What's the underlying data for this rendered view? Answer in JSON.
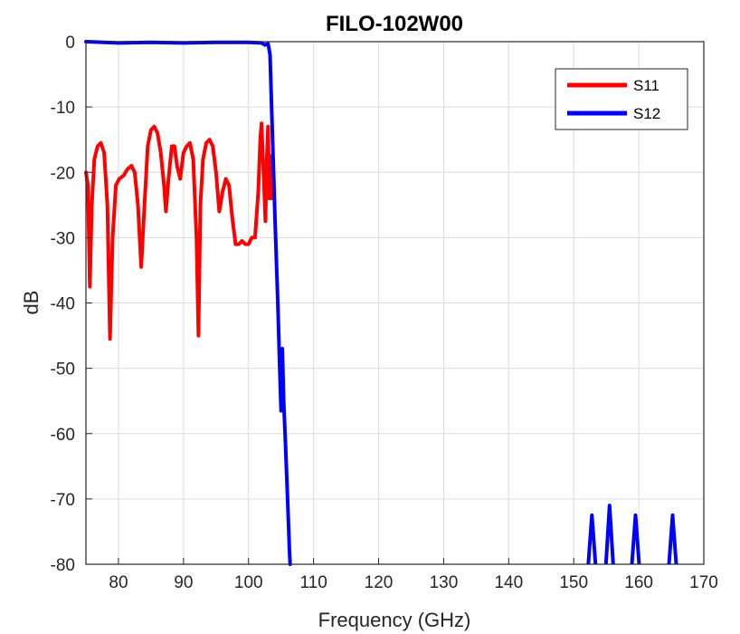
{
  "chart_data": {
    "type": "line",
    "title": "FILO-102W00",
    "xlabel": "Frequency (GHz)",
    "ylabel": "dB",
    "xlim": [
      75,
      170
    ],
    "ylim": [
      -80,
      0
    ],
    "xticks": [
      80,
      90,
      100,
      110,
      120,
      130,
      140,
      150,
      160,
      170
    ],
    "yticks": [
      0,
      -10,
      -20,
      -30,
      -40,
      -50,
      -60,
      -70,
      -80
    ],
    "grid": true,
    "legend_position": "top-right",
    "series": [
      {
        "name": "S11",
        "color": "#ff0000",
        "points": [
          [
            75.0,
            -20
          ],
          [
            75.3,
            -22
          ],
          [
            75.6,
            -37.5
          ],
          [
            75.9,
            -25
          ],
          [
            76.3,
            -18
          ],
          [
            76.8,
            -16
          ],
          [
            77.3,
            -15.5
          ],
          [
            77.8,
            -17
          ],
          [
            78.3,
            -25
          ],
          [
            78.7,
            -45.5
          ],
          [
            79.1,
            -30
          ],
          [
            79.6,
            -22
          ],
          [
            80.1,
            -21
          ],
          [
            80.8,
            -20.5
          ],
          [
            81.4,
            -19.5
          ],
          [
            82.0,
            -19
          ],
          [
            82.5,
            -20
          ],
          [
            83.0,
            -25
          ],
          [
            83.5,
            -34.5
          ],
          [
            84.0,
            -25
          ],
          [
            84.5,
            -16
          ],
          [
            85.0,
            -13.5
          ],
          [
            85.5,
            -13
          ],
          [
            86.0,
            -14
          ],
          [
            86.5,
            -17
          ],
          [
            87.0,
            -22
          ],
          [
            87.3,
            -26
          ],
          [
            87.7,
            -21
          ],
          [
            88.2,
            -16
          ],
          [
            88.6,
            -16
          ],
          [
            89.0,
            -19
          ],
          [
            89.5,
            -21
          ],
          [
            90.0,
            -17
          ],
          [
            90.5,
            -16
          ],
          [
            91.0,
            -15.5
          ],
          [
            91.5,
            -18
          ],
          [
            92.0,
            -30
          ],
          [
            92.3,
            -45
          ],
          [
            92.6,
            -25
          ],
          [
            93.0,
            -18
          ],
          [
            93.5,
            -15.5
          ],
          [
            94.0,
            -15
          ],
          [
            94.5,
            -16
          ],
          [
            95.0,
            -20
          ],
          [
            95.5,
            -26
          ],
          [
            96.0,
            -23
          ],
          [
            96.5,
            -21
          ],
          [
            97.0,
            -22
          ],
          [
            97.5,
            -27
          ],
          [
            98.0,
            -31
          ],
          [
            98.5,
            -31
          ],
          [
            99.0,
            -30.5
          ],
          [
            99.5,
            -31
          ],
          [
            100.0,
            -31
          ],
          [
            100.5,
            -30
          ],
          [
            101.0,
            -30
          ],
          [
            101.5,
            -23
          ],
          [
            101.8,
            -15
          ],
          [
            102.0,
            -12.5
          ],
          [
            102.3,
            -20
          ],
          [
            102.6,
            -27.5
          ],
          [
            102.8,
            -18
          ],
          [
            103.0,
            -13
          ],
          [
            103.2,
            -24
          ],
          [
            103.4,
            -17.5
          ],
          [
            103.6,
            -24
          ]
        ]
      },
      {
        "name": "S12",
        "color": "#0000ff",
        "points": [
          [
            75.0,
            0
          ],
          [
            80.0,
            -0.2
          ],
          [
            85.0,
            -0.1
          ],
          [
            90.0,
            -0.2
          ],
          [
            95.0,
            -0.1
          ],
          [
            100.0,
            -0.1
          ],
          [
            102.0,
            -0.2
          ],
          [
            102.5,
            -0.5
          ],
          [
            103.0,
            -0.3
          ],
          [
            103.3,
            -2
          ],
          [
            103.7,
            -15
          ],
          [
            104.1,
            -28
          ],
          [
            104.5,
            -40
          ],
          [
            104.8,
            -50
          ],
          [
            105.0,
            -56.5
          ],
          [
            105.2,
            -47
          ],
          [
            105.4,
            -55
          ],
          [
            105.7,
            -62
          ],
          [
            106.0,
            -70
          ],
          [
            106.3,
            -78
          ],
          [
            106.4,
            -80
          ]
        ],
        "spikes": [
          [
            152.8,
            -72.5
          ],
          [
            155.5,
            -71
          ],
          [
            159.5,
            -72.5
          ],
          [
            165.2,
            -72.5
          ]
        ]
      }
    ]
  }
}
